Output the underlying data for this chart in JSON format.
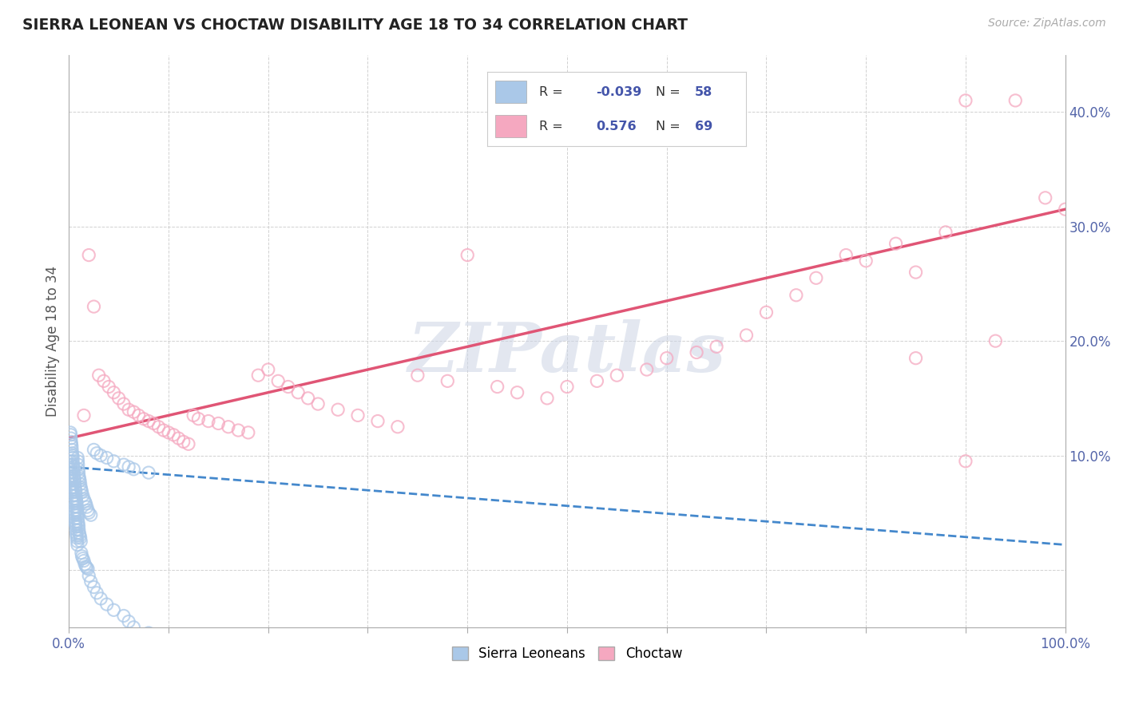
{
  "title": "SIERRA LEONEAN VS CHOCTAW DISABILITY AGE 18 TO 34 CORRELATION CHART",
  "source": "Source: ZipAtlas.com",
  "ylabel": "Disability Age 18 to 34",
  "xlim": [
    0,
    100
  ],
  "ylim": [
    -5,
    45
  ],
  "xticks": [
    0,
    10,
    20,
    30,
    40,
    50,
    60,
    70,
    80,
    90,
    100
  ],
  "xtick_labels": [
    "0.0%",
    "",
    "",
    "",
    "",
    "",
    "",
    "",
    "",
    "",
    "100.0%"
  ],
  "yticks": [
    0,
    10,
    20,
    30,
    40
  ],
  "ytick_labels": [
    "",
    "10.0%",
    "20.0%",
    "30.0%",
    "40.0%"
  ],
  "blue_scatter_color": "#aac8e8",
  "pink_scatter_color": "#f5a8c0",
  "blue_line_color": "#4488cc",
  "pink_line_color": "#e05575",
  "grid_color": "#cccccc",
  "title_color": "#222222",
  "tick_color": "#5566aa",
  "watermark_text": "ZIPatlas",
  "watermark_color": "#ccd5e5",
  "legend_r1": "-0.039",
  "legend_n1": "58",
  "legend_r2": "0.576",
  "legend_n2": "69",
  "blue_trend_start_y": 9.0,
  "blue_trend_end_y": 2.2,
  "pink_trend_start_y": 11.5,
  "pink_trend_end_y": 31.5,
  "sierra_x": [
    0.15,
    0.18,
    0.2,
    0.22,
    0.25,
    0.28,
    0.3,
    0.32,
    0.35,
    0.38,
    0.4,
    0.42,
    0.45,
    0.48,
    0.5,
    0.52,
    0.55,
    0.58,
    0.6,
    0.62,
    0.65,
    0.68,
    0.7,
    0.72,
    0.75,
    0.78,
    0.8,
    0.82,
    0.85,
    0.88,
    0.9,
    0.92,
    0.95,
    0.98,
    1.0,
    1.05,
    1.1,
    1.15,
    1.2,
    1.25,
    1.3,
    1.4,
    1.5,
    1.6,
    1.7,
    1.8,
    1.9,
    2.0,
    2.2,
    2.5,
    2.8,
    3.2,
    3.8,
    4.5,
    5.5,
    6.0,
    6.5,
    8.0
  ],
  "sierra_y": [
    9.5,
    9.2,
    8.8,
    8.5,
    8.2,
    8.0,
    7.8,
    7.5,
    7.2,
    7.0,
    6.8,
    6.5,
    6.2,
    6.0,
    5.8,
    5.5,
    5.2,
    5.0,
    4.8,
    4.5,
    4.2,
    4.0,
    3.8,
    3.5,
    3.2,
    3.0,
    2.8,
    2.5,
    2.2,
    9.8,
    9.5,
    9.2,
    8.8,
    8.5,
    8.2,
    8.0,
    7.8,
    7.5,
    7.2,
    7.0,
    6.8,
    6.5,
    6.2,
    6.0,
    5.8,
    5.5,
    5.2,
    5.0,
    4.8,
    10.5,
    10.2,
    10.0,
    9.8,
    9.5,
    9.2,
    9.0,
    8.8,
    8.5
  ],
  "sierra_y_extra": [
    12.0,
    11.8,
    11.5,
    11.2,
    11.0,
    10.8,
    10.5,
    10.2,
    10.0,
    9.8,
    9.5,
    9.2,
    9.0,
    8.8,
    8.5,
    8.2,
    8.0,
    7.8,
    7.5,
    7.2,
    7.0,
    6.8,
    6.5,
    6.2,
    6.0,
    5.8,
    5.5,
    5.2,
    5.0,
    4.8,
    4.5,
    4.2,
    4.0,
    3.8,
    3.5,
    3.2,
    3.0,
    2.8,
    2.5,
    1.5,
    1.2,
    1.0,
    0.8,
    0.5,
    0.3,
    0.2,
    0.1,
    -0.5,
    -1.0,
    -1.5,
    -2.0,
    -2.5,
    -3.0,
    -3.5,
    -4.0,
    -4.5,
    -5.0,
    -5.5
  ],
  "choctaw_x": [
    1.5,
    2.0,
    2.5,
    3.0,
    3.5,
    4.0,
    4.5,
    5.0,
    5.5,
    6.0,
    6.5,
    7.0,
    7.5,
    8.0,
    8.5,
    9.0,
    9.5,
    10.0,
    10.5,
    11.0,
    11.5,
    12.0,
    12.5,
    13.0,
    14.0,
    15.0,
    16.0,
    17.0,
    18.0,
    19.0,
    20.0,
    21.0,
    22.0,
    23.0,
    24.0,
    25.0,
    27.0,
    29.0,
    31.0,
    33.0,
    35.0,
    38.0,
    40.0,
    43.0,
    45.0,
    48.0,
    50.0,
    53.0,
    55.0,
    58.0,
    60.0,
    63.0,
    65.0,
    68.0,
    70.0,
    73.0,
    75.0,
    78.0,
    80.0,
    83.0,
    85.0,
    88.0,
    90.0,
    93.0,
    95.0,
    98.0,
    100.0,
    85.0,
    90.0
  ],
  "choctaw_y": [
    13.5,
    27.5,
    23.0,
    17.0,
    16.5,
    16.0,
    15.5,
    15.0,
    14.5,
    14.0,
    13.8,
    13.5,
    13.2,
    13.0,
    12.8,
    12.5,
    12.2,
    12.0,
    11.8,
    11.5,
    11.2,
    11.0,
    13.5,
    13.2,
    13.0,
    12.8,
    12.5,
    12.2,
    12.0,
    17.0,
    17.5,
    16.5,
    16.0,
    15.5,
    15.0,
    14.5,
    14.0,
    13.5,
    13.0,
    12.5,
    17.0,
    16.5,
    27.5,
    16.0,
    15.5,
    15.0,
    16.0,
    16.5,
    17.0,
    17.5,
    18.5,
    19.0,
    19.5,
    20.5,
    22.5,
    24.0,
    25.5,
    27.5,
    27.0,
    28.5,
    26.0,
    29.5,
    9.5,
    20.0,
    41.0,
    32.5,
    31.5,
    18.5,
    41.0
  ]
}
